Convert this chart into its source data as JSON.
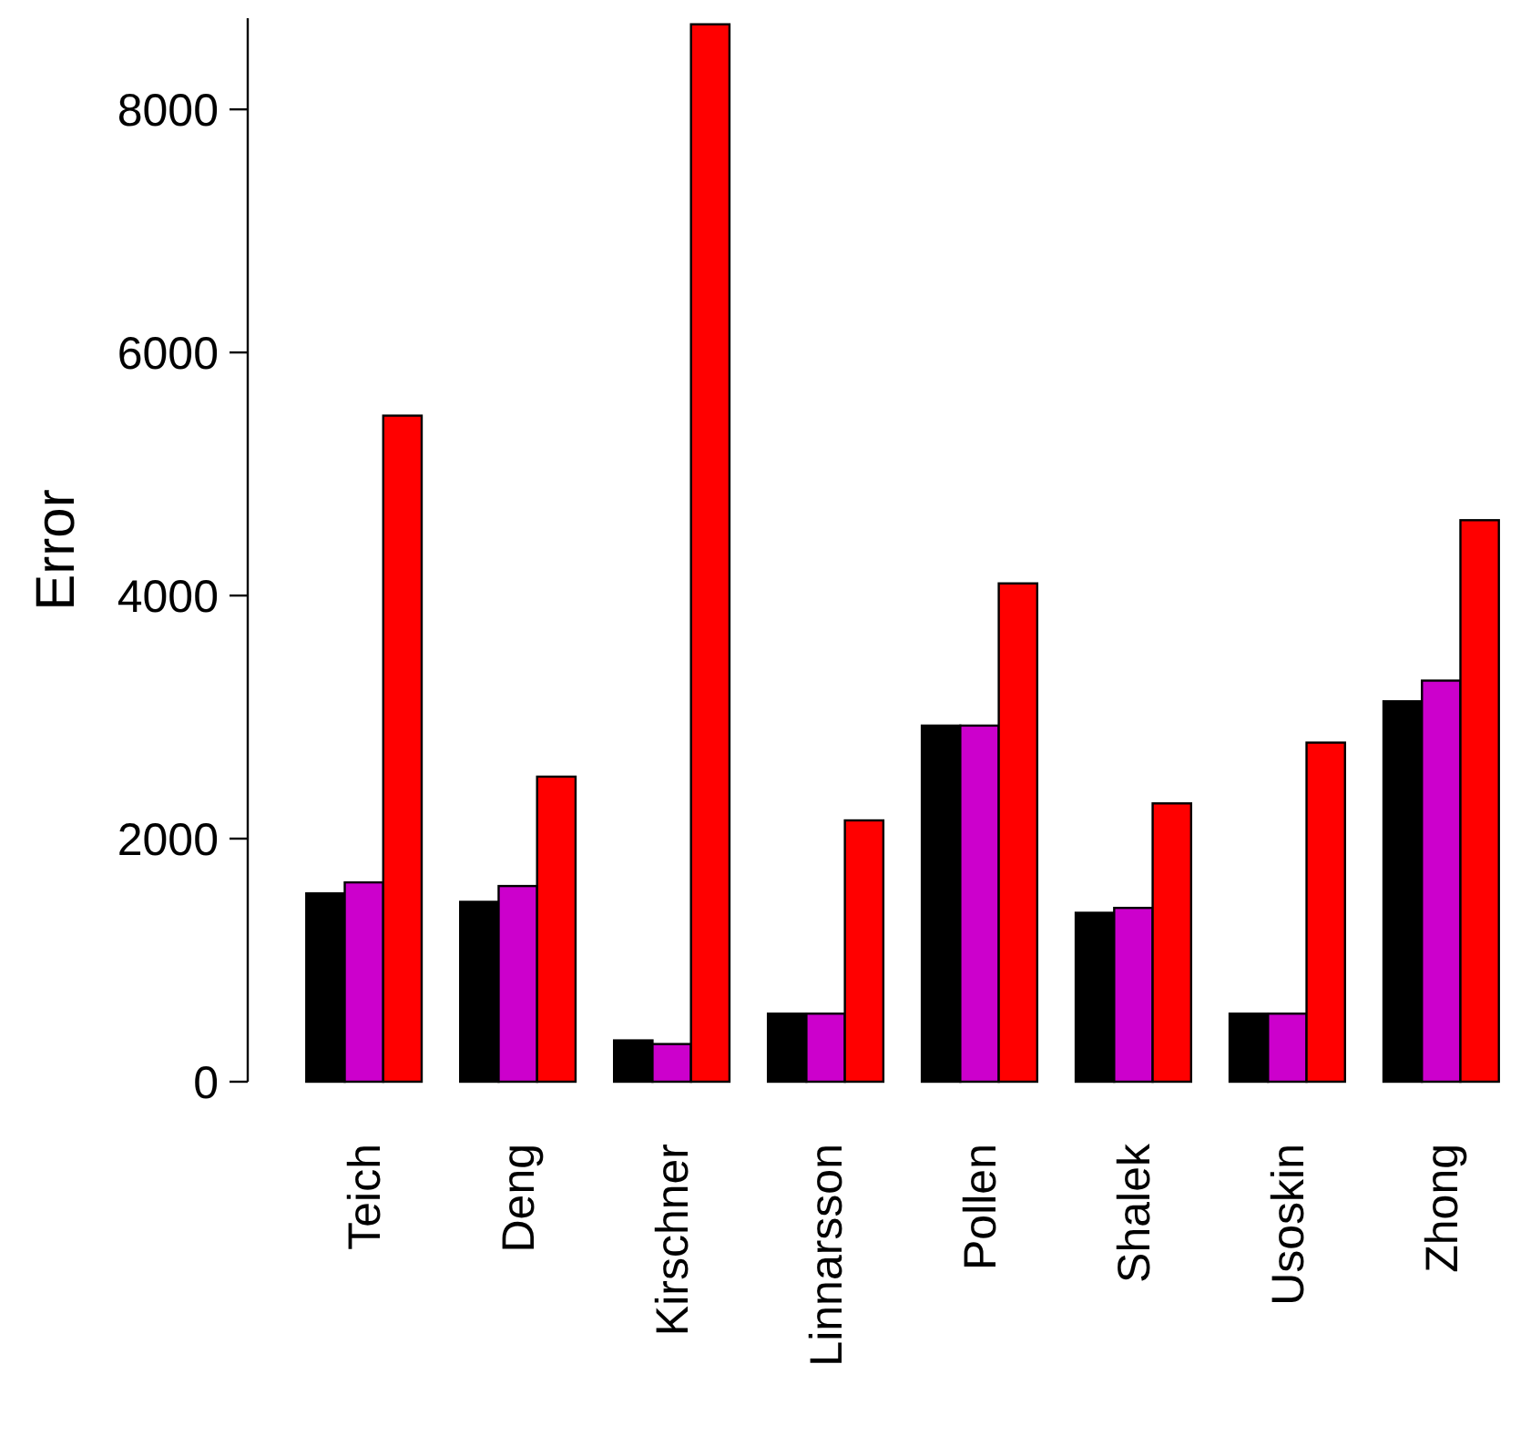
{
  "chart_data": {
    "type": "bar",
    "ylabel": "Error",
    "categories": [
      "Teich",
      "Deng",
      "Kirschner",
      "Linnarsson",
      "Pollen",
      "Shalek",
      "Usoskin",
      "Zhong"
    ],
    "series": [
      {
        "color": "#000000",
        "values": [
          1550,
          1480,
          340,
          560,
          2930,
          1390,
          560,
          3130
        ]
      },
      {
        "color": "#cc00cc",
        "values": [
          1640,
          1610,
          310,
          560,
          2930,
          1430,
          560,
          3300
        ]
      },
      {
        "color": "#ff0000",
        "values": [
          5480,
          2510,
          8700,
          2150,
          4100,
          2290,
          2790,
          4620
        ]
      }
    ],
    "ylim": [
      0,
      8750
    ],
    "yticks": [
      0,
      2000,
      4000,
      6000,
      8000
    ],
    "grid": false
  }
}
